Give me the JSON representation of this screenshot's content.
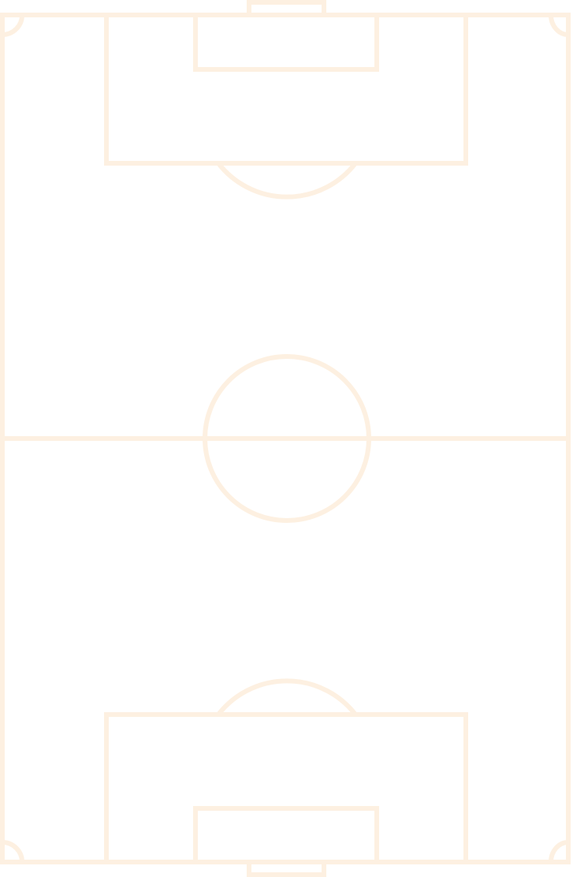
{
  "pitch": {
    "line_color": "#fdf0e1",
    "background_color": "#ffffff"
  },
  "icons": {
    "pitch": "soccer-field-icon"
  }
}
